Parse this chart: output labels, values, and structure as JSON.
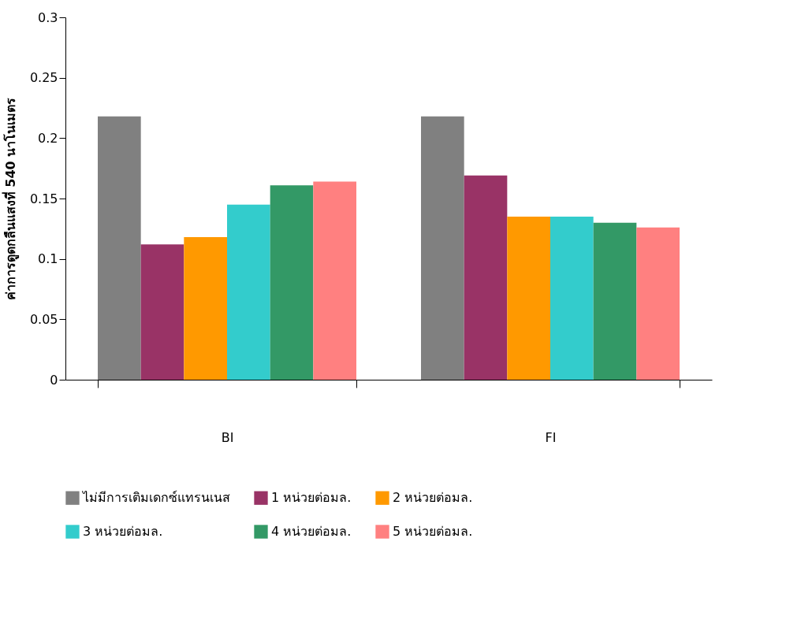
{
  "chart_data": {
    "type": "bar",
    "ylabel": "ค่าการดูดกลืนแสงที่ 540 นาโนเมตร",
    "categories": [
      "BI",
      "FI"
    ],
    "series": [
      {
        "name": "ไม่มีการเติมเดกซ์แทรนเนส",
        "color": "#808080",
        "values": [
          0.218,
          0.218
        ]
      },
      {
        "name": "1 หน่วยต่อมล.",
        "color": "#993366",
        "values": [
          0.112,
          0.169
        ]
      },
      {
        "name": "2 หน่วยต่อมล.",
        "color": "#ff9900",
        "values": [
          0.118,
          0.135
        ]
      },
      {
        "name": "3 หน่วยต่อมล.",
        "color": "#33cccc",
        "values": [
          0.145,
          0.135
        ]
      },
      {
        "name": "4 หน่วยต่อมล.",
        "color": "#339966",
        "values": [
          0.161,
          0.13
        ]
      },
      {
        "name": "5 หน่วยต่อมล.",
        "color": "#ff8080",
        "values": [
          0.164,
          0.126
        ]
      }
    ],
    "ylim": [
      0,
      0.3
    ],
    "yticks": [
      0,
      0.05,
      0.1,
      0.15,
      0.2,
      0.25,
      0.3
    ],
    "grid": false,
    "legend": "bottom"
  }
}
